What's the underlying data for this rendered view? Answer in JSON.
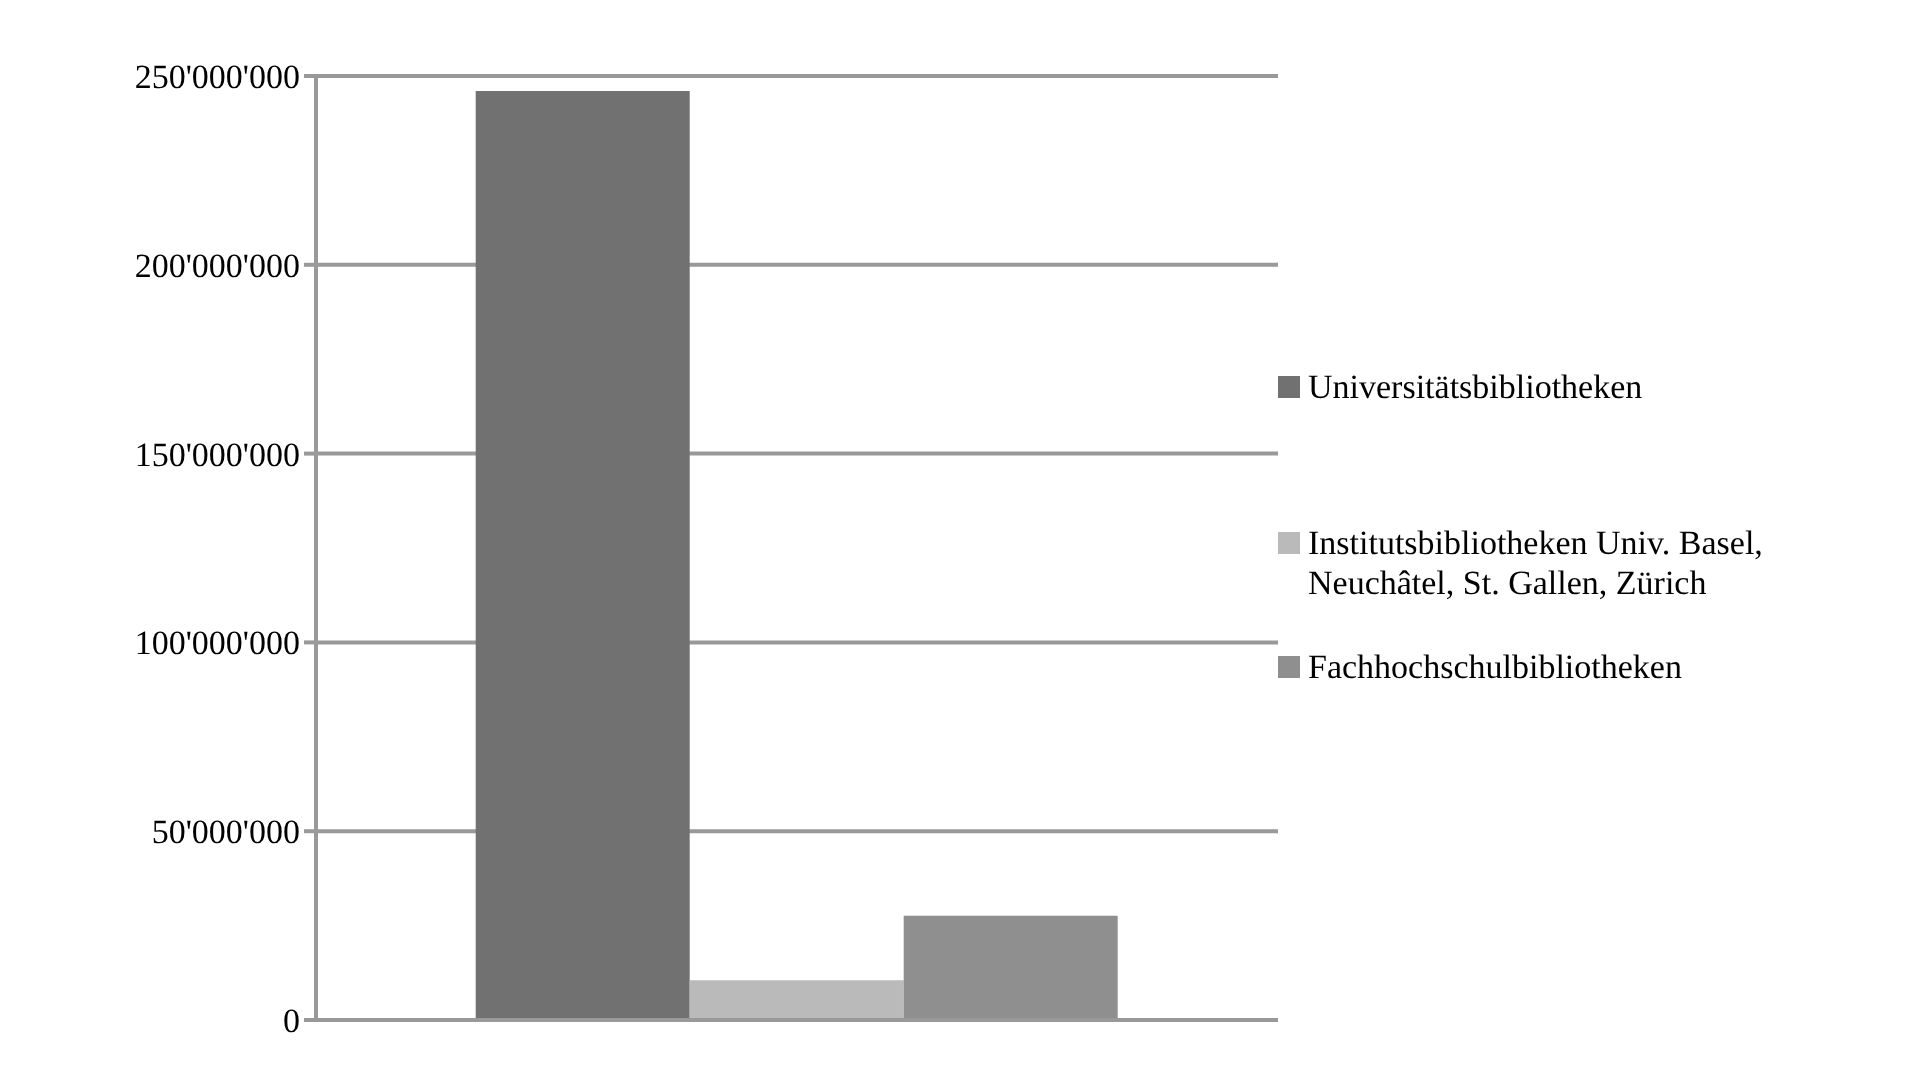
{
  "chart_data": {
    "type": "bar",
    "categories": [
      null
    ],
    "series": [
      {
        "name": "Universitätsbibliotheken",
        "color": "#717171",
        "values": [
          246000000
        ]
      },
      {
        "name": "Institutsbibliotheken Univ. Basel, Neuchâtel, St. Gallen, Zürich",
        "color": "#bababa",
        "values": [
          10500000
        ]
      },
      {
        "name": "Fachhochschulbibliotheken",
        "color": "#8f8f8f",
        "values": [
          27600000
        ]
      }
    ],
    "ylim": [
      0,
      250000000
    ],
    "yticks": [
      {
        "value": 0,
        "label": "0"
      },
      {
        "value": 50000000,
        "label": "50'000'000"
      },
      {
        "value": 100000000,
        "label": "100'000'000"
      },
      {
        "value": 150000000,
        "label": "150'000'000"
      },
      {
        "value": 200000000,
        "label": "200'000'000"
      },
      {
        "value": 250000000,
        "label": "250'000'000"
      }
    ],
    "grid": "y",
    "legend": "right"
  }
}
